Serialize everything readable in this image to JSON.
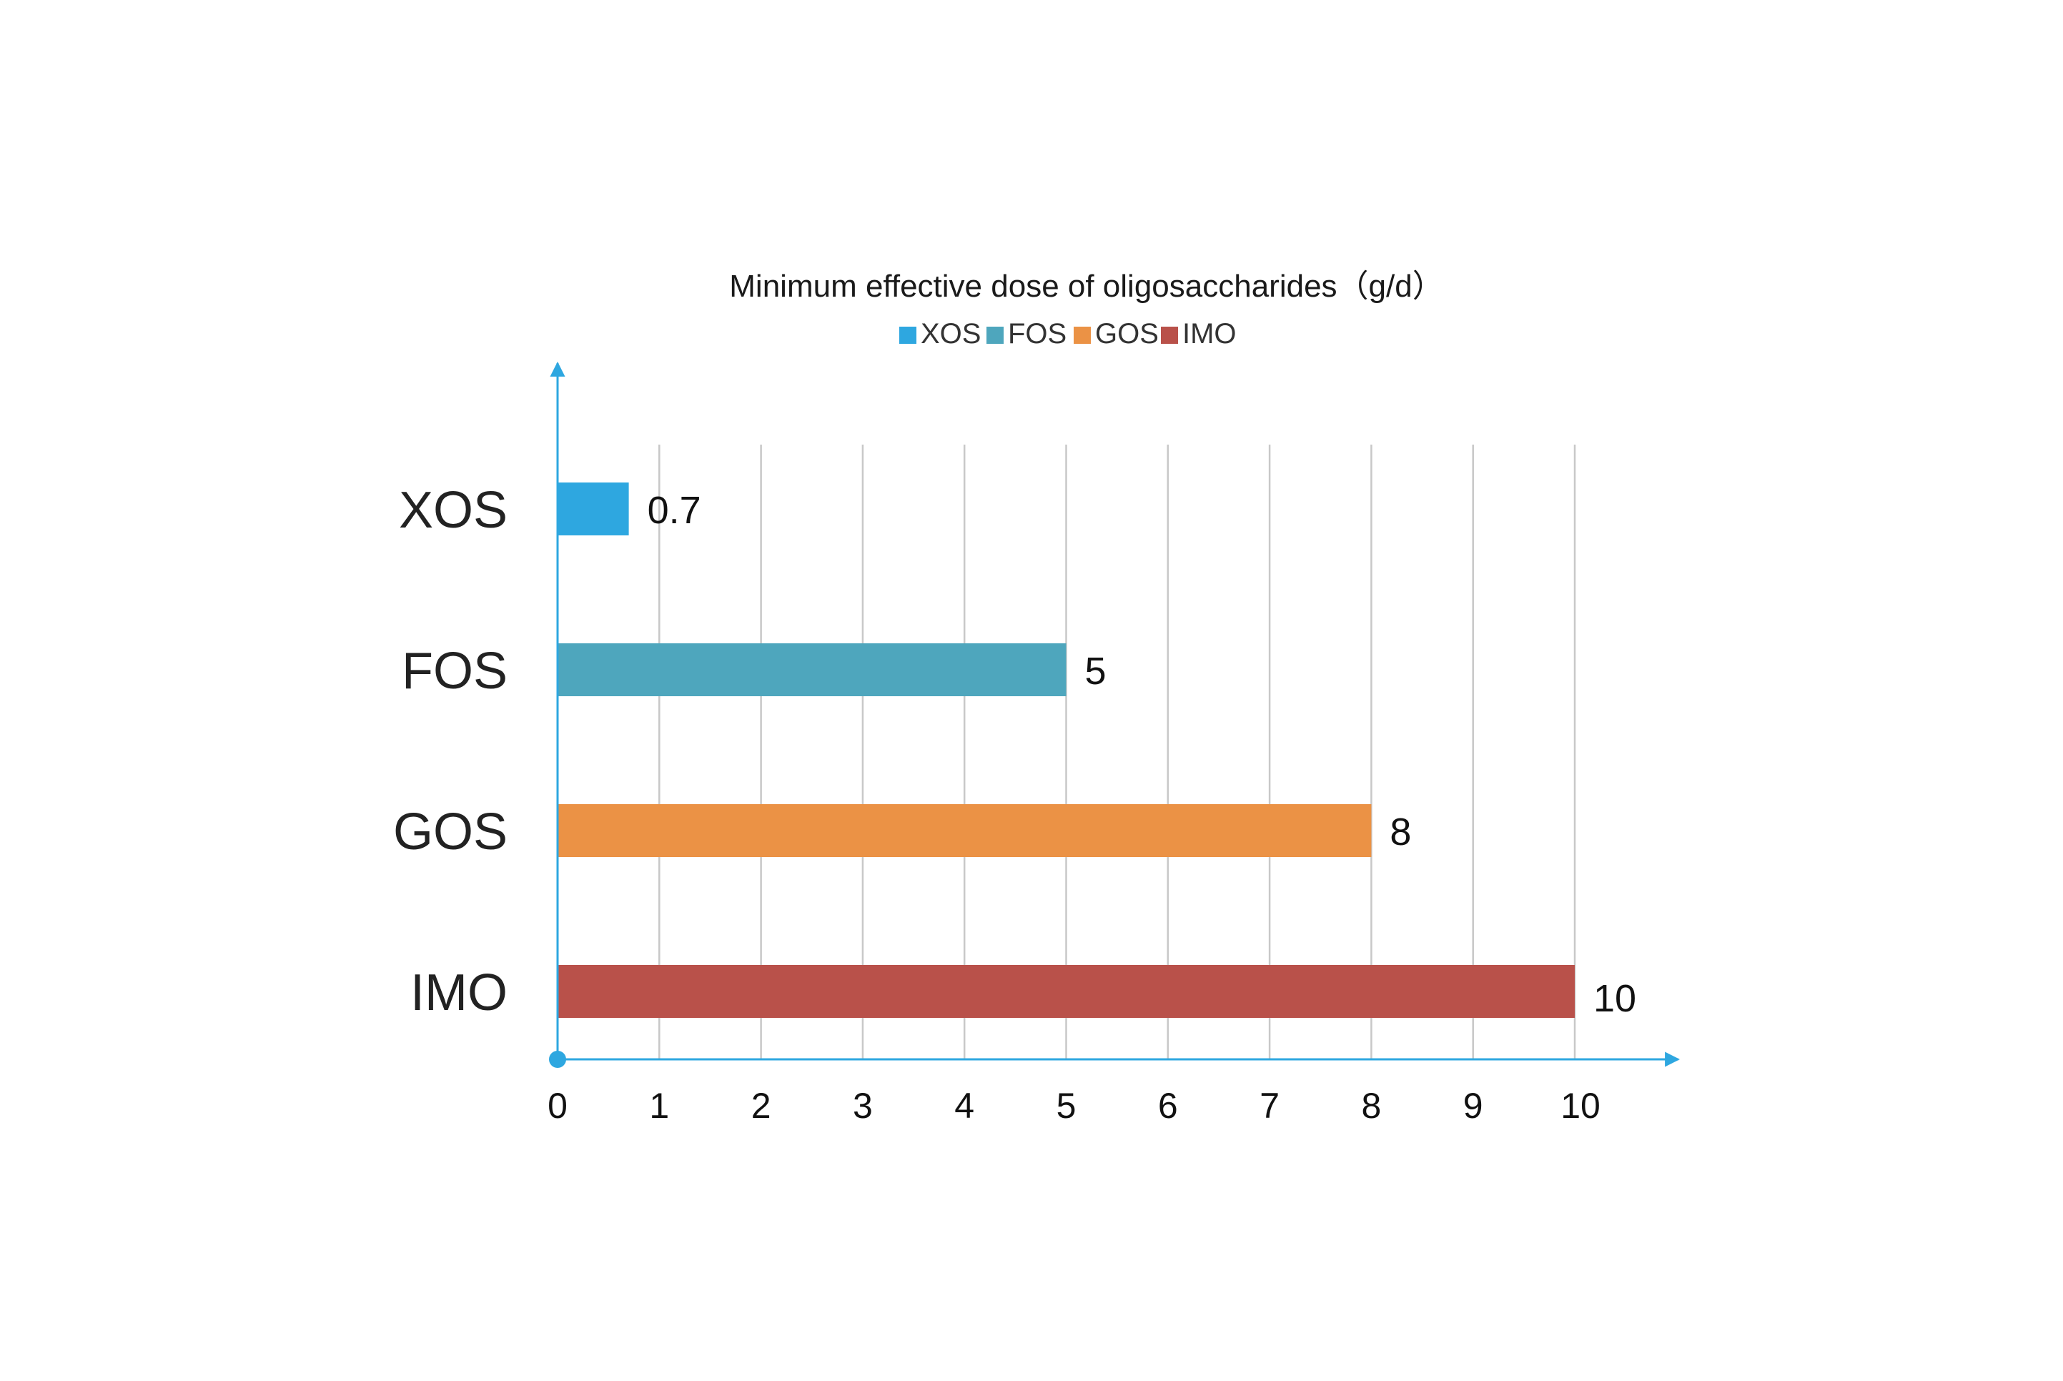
{
  "chart_data": {
    "type": "bar",
    "orientation": "horizontal",
    "title": "Minimum effective dose of oligosaccharides（g/d）",
    "categories": [
      "XOS",
      "FOS",
      "GOS",
      "IMO"
    ],
    "values": [
      0.7,
      5,
      8,
      10
    ],
    "data_labels": [
      "0.7",
      "5",
      "8",
      "10"
    ],
    "colors": [
      "#2ea7e0",
      "#4ea6bd",
      "#eb9245",
      "#b9514a"
    ],
    "legend": {
      "placement": "top-center",
      "items": [
        {
          "label": "XOS",
          "color": "#2ea7e0"
        },
        {
          "label": "FOS",
          "color": "#4ea6bd"
        },
        {
          "label": "GOS",
          "color": "#eb9245"
        },
        {
          "label": "IMO",
          "color": "#b9514a"
        }
      ]
    },
    "x_ticks": [
      "0",
      "1",
      "2",
      "3",
      "4",
      "5",
      "6",
      "7",
      "8",
      "9",
      "10"
    ],
    "xlim": [
      0,
      10
    ],
    "xlabel": "",
    "ylabel": "",
    "grid": "vertical",
    "axis_color": "#2ea7e0",
    "grid_color": "#c8c8c8"
  }
}
